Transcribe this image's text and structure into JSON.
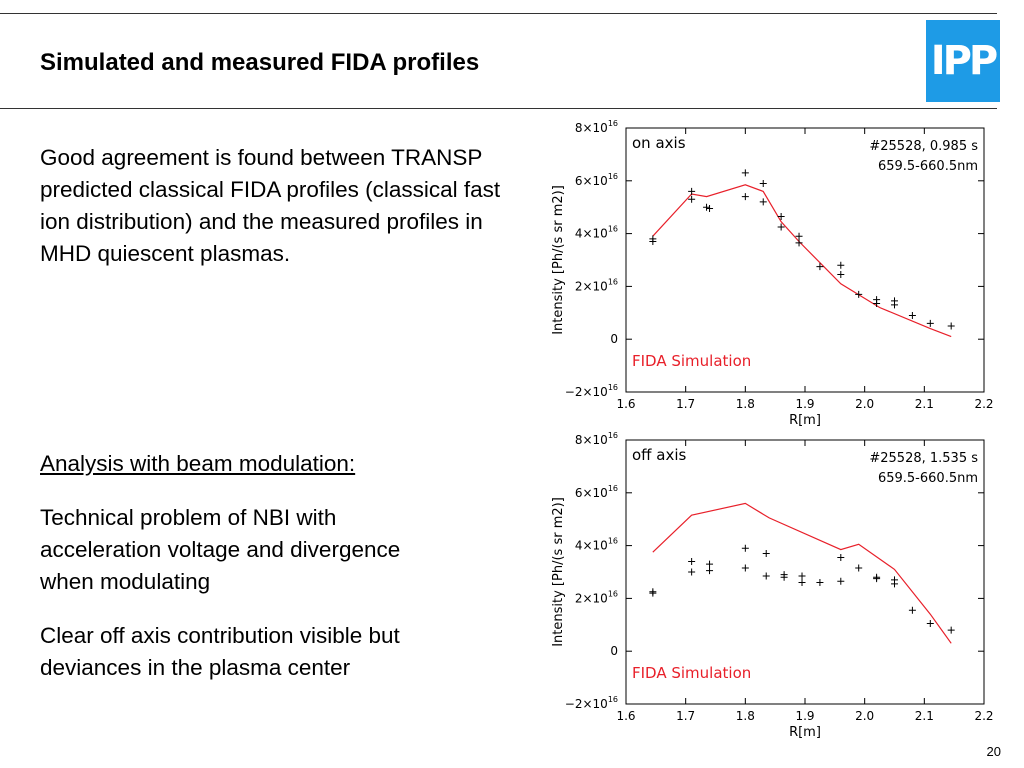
{
  "slide": {
    "title": "Simulated and measured FIDA profiles",
    "logo_text": "IPP",
    "paragraph1": "Good agreement is found between TRANSP predicted classical FIDA profiles (classical fast ion distribution) and the measured profiles in MHD quiescent plasmas.",
    "analysis_heading": "Analysis with beam modulation:",
    "paragraph2": "Technical problem of NBI with acceleration voltage and divergence when modulating",
    "paragraph3": "Clear off axis contribution visible but deviances in the plasma center",
    "page_number": "20"
  },
  "colors": {
    "simulation": "#e8202a",
    "measured": "#000000",
    "logo_bg": "#1e9be6"
  },
  "chart_data": [
    {
      "type": "line",
      "panel_label": "on axis",
      "annotation_lines": [
        "#25528, 0.985 s",
        "659.5-660.5nm"
      ],
      "simulation_label": "FIDA Simulation",
      "xlabel": "R[m]",
      "ylabel": "Intensity [Ph/(s sr m2)]",
      "xlim": [
        1.6,
        2.2
      ],
      "ylim": [
        -2e+16,
        8e+16
      ],
      "xticks": [
        1.6,
        1.7,
        1.8,
        1.9,
        2.0,
        2.1,
        2.2
      ],
      "xtick_labels": [
        "1.6",
        "1.7",
        "1.8",
        "1.9",
        "2.0",
        "2.1",
        "2.2"
      ],
      "yticks": [
        -2e+16,
        0,
        2e+16,
        4e+16,
        6e+16,
        8e+16
      ],
      "ytick_labels": [
        {
          "mant": "−2×10",
          "exp": "16"
        },
        {
          "mant": "0",
          "exp": ""
        },
        {
          "mant": "2×10",
          "exp": "16"
        },
        {
          "mant": "4×10",
          "exp": "16"
        },
        {
          "mant": "6×10",
          "exp": "16"
        },
        {
          "mant": "8×10",
          "exp": "16"
        }
      ],
      "series": [
        {
          "kind": "line",
          "x": [
            1.645,
            1.71,
            1.735,
            1.8,
            1.83,
            1.86,
            1.89,
            1.96,
            2.025,
            2.11,
            2.145
          ],
          "y": [
            3.9e+16,
            5.5e+16,
            5.4e+16,
            5.85e+16,
            5.6e+16,
            4.45e+16,
            3.7e+16,
            2.1e+16,
            1.2e+16,
            4000000000000000.0,
            1000000000000000.0
          ]
        },
        {
          "kind": "scatter",
          "x": [
            1.645,
            1.645,
            1.71,
            1.71,
            1.735,
            1.74,
            1.8,
            1.8,
            1.83,
            1.83,
            1.86,
            1.86,
            1.89,
            1.89,
            1.925,
            1.96,
            1.96,
            1.99,
            2.02,
            2.02,
            2.05,
            2.05,
            2.08,
            2.11,
            2.145
          ],
          "y": [
            3.7e+16,
            3.8e+16,
            5.6e+16,
            5.3e+16,
            5e+16,
            4.95e+16,
            6.3e+16,
            5.4e+16,
            5.9e+16,
            5.2e+16,
            4.65e+16,
            4.25e+16,
            3.9e+16,
            3.65e+16,
            2.75e+16,
            2.8e+16,
            2.45e+16,
            1.7e+16,
            1.5e+16,
            1.35e+16,
            1.45e+16,
            1.3e+16,
            9000000000000000.0,
            6000000000000000.0,
            5000000000000000.0
          ]
        }
      ]
    },
    {
      "type": "line",
      "panel_label": "off axis",
      "annotation_lines": [
        "#25528, 1.535 s",
        "659.5-660.5nm"
      ],
      "simulation_label": "FIDA Simulation",
      "xlabel": "R[m]",
      "ylabel": "Intensity [Ph/(s sr m2)]",
      "xlim": [
        1.6,
        2.2
      ],
      "ylim": [
        -2e+16,
        8e+16
      ],
      "xticks": [
        1.6,
        1.7,
        1.8,
        1.9,
        2.0,
        2.1,
        2.2
      ],
      "xtick_labels": [
        "1.6",
        "1.7",
        "1.8",
        "1.9",
        "2.0",
        "2.1",
        "2.2"
      ],
      "yticks": [
        -2e+16,
        0,
        2e+16,
        4e+16,
        6e+16,
        8e+16
      ],
      "ytick_labels": [
        {
          "mant": "−2×10",
          "exp": "16"
        },
        {
          "mant": "0",
          "exp": ""
        },
        {
          "mant": "2×10",
          "exp": "16"
        },
        {
          "mant": "4×10",
          "exp": "16"
        },
        {
          "mant": "6×10",
          "exp": "16"
        },
        {
          "mant": "8×10",
          "exp": "16"
        }
      ],
      "series": [
        {
          "kind": "line",
          "x": [
            1.645,
            1.71,
            1.8,
            1.84,
            1.96,
            1.99,
            2.05,
            2.11,
            2.145
          ],
          "y": [
            3.75e+16,
            5.15e+16,
            5.6e+16,
            5.05e+16,
            3.85e+16,
            4.05e+16,
            3.1e+16,
            1.4e+16,
            3000000000000000.0
          ]
        },
        {
          "kind": "scatter",
          "x": [
            1.645,
            1.645,
            1.71,
            1.71,
            1.74,
            1.74,
            1.8,
            1.8,
            1.835,
            1.835,
            1.865,
            1.865,
            1.895,
            1.895,
            1.925,
            1.96,
            1.96,
            1.99,
            2.02,
            2.02,
            2.05,
            2.05,
            2.08,
            2.11,
            2.145
          ],
          "y": [
            2.2e+16,
            2.25e+16,
            3.4e+16,
            3e+16,
            3.3e+16,
            3.05e+16,
            3.9e+16,
            3.15e+16,
            3.7e+16,
            2.85e+16,
            2.9e+16,
            2.8e+16,
            2.85e+16,
            2.6e+16,
            2.6e+16,
            3.55e+16,
            2.65e+16,
            3.15e+16,
            2.8e+16,
            2.75e+16,
            2.7e+16,
            2.55e+16,
            1.55e+16,
            1.05e+16,
            8000000000000000.0
          ]
        }
      ]
    }
  ]
}
